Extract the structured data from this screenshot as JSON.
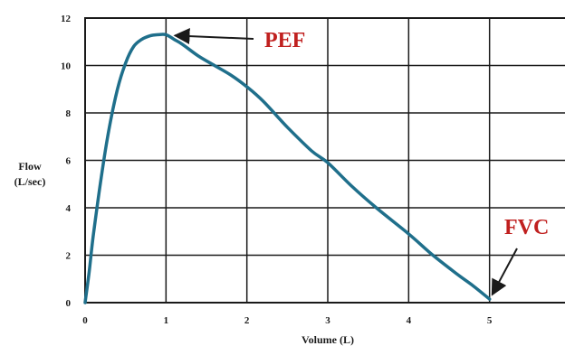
{
  "chart_data": {
    "type": "line",
    "title": "",
    "xlabel": "Volume (L)",
    "ylabel_lines": [
      "Flow",
      "(L/sec)"
    ],
    "xlim": [
      0,
      6
    ],
    "ylim": [
      0,
      12
    ],
    "x_ticks": [
      "0",
      "1",
      "2",
      "3",
      "4",
      "5"
    ],
    "y_ticks": [
      "0",
      "2",
      "4",
      "6",
      "8",
      "10",
      "12"
    ],
    "grid": true,
    "series": [
      {
        "x": [
          0,
          0.05,
          0.1,
          0.2,
          0.3,
          0.4,
          0.5,
          0.6,
          0.7,
          0.8,
          0.9,
          1.0,
          1.1,
          1.2,
          1.4,
          1.6,
          1.8,
          2.0,
          2.2,
          2.5,
          2.8,
          3.0,
          3.3,
          3.6,
          4.0,
          4.3,
          4.6,
          4.8,
          5.0
        ],
        "y": [
          0.0,
          1.3,
          2.8,
          5.3,
          7.4,
          9.0,
          10.1,
          10.8,
          11.1,
          11.25,
          11.3,
          11.3,
          11.1,
          10.9,
          10.4,
          10.0,
          9.6,
          9.1,
          8.5,
          7.4,
          6.4,
          5.9,
          4.9,
          4.0,
          2.9,
          2.0,
          1.2,
          0.7,
          0.15
        ],
        "color": "#1f6f8b"
      }
    ],
    "annotations": [
      {
        "text": "PEF",
        "x": 1.0,
        "y": 11.3,
        "color": "#c0201f"
      },
      {
        "text": "FVC",
        "x": 5.0,
        "y": 0.15,
        "color": "#c0201f"
      }
    ]
  }
}
